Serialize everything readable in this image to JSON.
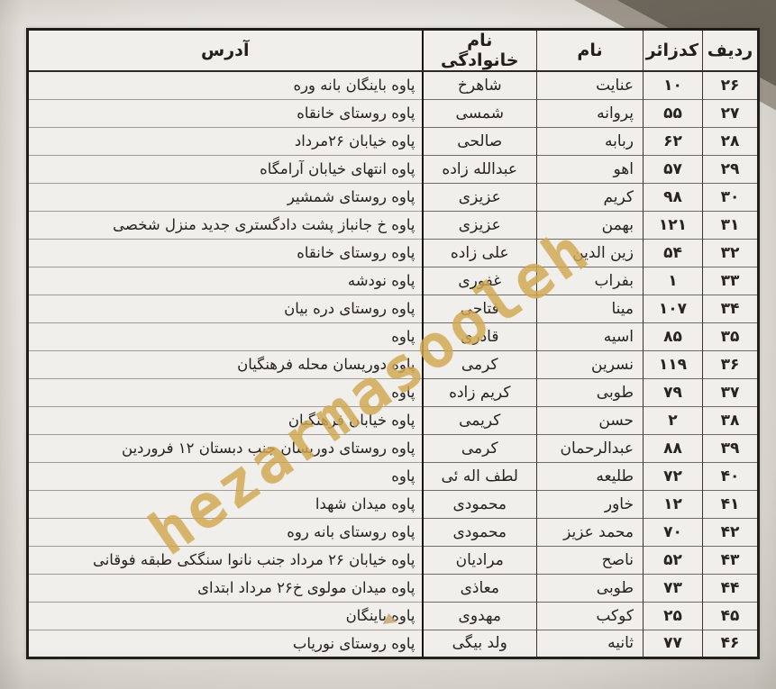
{
  "document": {
    "watermark": "hezarmasooleh"
  },
  "table": {
    "headers": {
      "row": "ردیف",
      "code": "کدزائر",
      "first_name": "نام",
      "last_name": "نام خانوادگی",
      "address": "آدرس"
    },
    "rows": [
      {
        "row": "۲۶",
        "code": "۱۰",
        "first_name": "عنایت",
        "last_name": "شاهرخ",
        "address": "پاوه باینگان بانه وره"
      },
      {
        "row": "۲۷",
        "code": "۵۵",
        "first_name": "پروانه",
        "last_name": "شمسی",
        "address": "پاوه روستای خانقاه"
      },
      {
        "row": "۲۸",
        "code": "۶۲",
        "first_name": "ربابه",
        "last_name": "صالحی",
        "address": "پاوه خیابان ۲۶مرداد"
      },
      {
        "row": "۲۹",
        "code": "۵۷",
        "first_name": "اهو",
        "last_name": "عبدالله زاده",
        "address": "پاوه انتهای خیابان آرامگاه"
      },
      {
        "row": "۳۰",
        "code": "۹۸",
        "first_name": "کریم",
        "last_name": "عزیزی",
        "address": "پاوه روستای شمشیر"
      },
      {
        "row": "۳۱",
        "code": "۱۲۱",
        "first_name": "بهمن",
        "last_name": "عزیزی",
        "address": "پاوه خ جانباز پشت دادگستری جدید منزل شخصی"
      },
      {
        "row": "۳۲",
        "code": "۵۴",
        "first_name": "زین الدین",
        "last_name": "علی زاده",
        "address": "پاوه روستای خانقاه"
      },
      {
        "row": "۳۳",
        "code": "۱",
        "first_name": "بفراب",
        "last_name": "غفوری",
        "address": "پاوه نودشه"
      },
      {
        "row": "۳۴",
        "code": "۱۰۷",
        "first_name": "مینا",
        "last_name": "فتاحی",
        "address": "پاوه روستای دره بیان"
      },
      {
        "row": "۳۵",
        "code": "۸۵",
        "first_name": "اسیه",
        "last_name": "قادری",
        "address": "پاوه"
      },
      {
        "row": "۳۶",
        "code": "۱۱۹",
        "first_name": "نسرین",
        "last_name": "کرمی",
        "address": "پاوه دوریسان محله فرهنگیان"
      },
      {
        "row": "۳۷",
        "code": "۷۹",
        "first_name": "طوبی",
        "last_name": "کریم زاده",
        "address": "پاوه"
      },
      {
        "row": "۳۸",
        "code": "۲",
        "first_name": "حسن",
        "last_name": "کریمی",
        "address": "پاوه خیابان فرهنگیان"
      },
      {
        "row": "۳۹",
        "code": "۸۸",
        "first_name": "عبدالرحمان",
        "last_name": "کرمی",
        "address": "پاوه روستای دوریسان جنب دبستان ۱۲ فروردین"
      },
      {
        "row": "۴۰",
        "code": "۷۲",
        "first_name": "طلیعه",
        "last_name": "لطف اله ئی",
        "address": "پاوه"
      },
      {
        "row": "۴۱",
        "code": "۱۲",
        "first_name": "خاور",
        "last_name": "محمودی",
        "address": "پاوه میدان شهدا"
      },
      {
        "row": "۴۲",
        "code": "۷۰",
        "first_name": "محمد عزیز",
        "last_name": "محمودی",
        "address": "پاوه روستای بانه روه"
      },
      {
        "row": "۴۳",
        "code": "۵۲",
        "first_name": "ناصح",
        "last_name": "مرادیان",
        "address": "پاوه خیابان ۲۶ مرداد جنب نانوا سنگکی طبقه فوقانی"
      },
      {
        "row": "۴۴",
        "code": "۷۳",
        "first_name": "طوبی",
        "last_name": "معاذی",
        "address": "پاوه میدان مولوی خ۲۶ مرداد ابتدای"
      },
      {
        "row": "۴۵",
        "code": "۲۵",
        "first_name": "کوکب",
        "last_name": "مهدوی",
        "address": "پاوه باینگان"
      },
      {
        "row": "۴۶",
        "code": "۷۷",
        "first_name": "ثانیه",
        "last_name": "ولد بیگی",
        "address": "پاوه روستای نوریاب"
      }
    ]
  }
}
